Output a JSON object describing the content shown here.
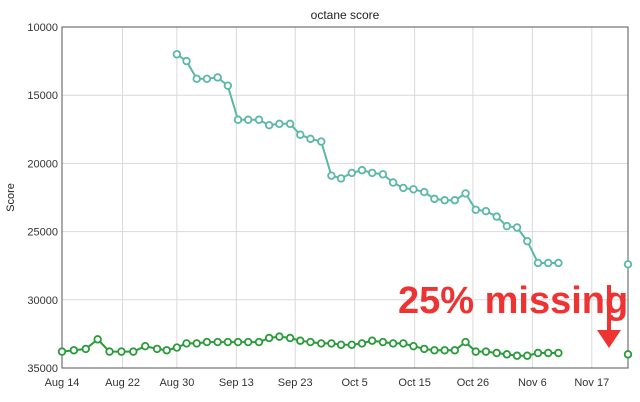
{
  "chart_data": {
    "type": "line",
    "title": "octane score",
    "xlabel": "",
    "ylabel": "Score",
    "ylim": [
      10000,
      35000
    ],
    "y_inverted": true,
    "y_ticks": [
      "10000",
      "15000",
      "20000",
      "25000",
      "30000",
      "35000"
    ],
    "y_tick_values": [
      10000,
      15000,
      20000,
      25000,
      30000,
      35000
    ],
    "x_range": [
      0,
      100
    ],
    "x_tick_labels": [
      "Aug 14",
      "Aug 22",
      "Aug 30",
      "Sep 13",
      "Sep 23",
      "Oct 5",
      "Oct 15",
      "Oct 26",
      "Nov 6",
      "Nov 17"
    ],
    "x_tick_positions": [
      0,
      10.7,
      20.3,
      30.8,
      41.2,
      51.7,
      62.3,
      72.6,
      83.1,
      93.6
    ],
    "grid": true,
    "series": [
      {
        "name": "teal",
        "color": "#5bb8a8",
        "points": [
          [
            20.3,
            12000
          ],
          [
            22.0,
            12500
          ],
          [
            23.8,
            13800
          ],
          [
            25.6,
            13800
          ],
          [
            27.5,
            13700
          ],
          [
            29.3,
            14300
          ],
          [
            31.1,
            16800
          ],
          [
            32.9,
            16800
          ],
          [
            34.8,
            16800
          ],
          [
            36.6,
            17200
          ],
          [
            38.4,
            17100
          ],
          [
            40.3,
            17100
          ],
          [
            42.1,
            17900
          ],
          [
            43.9,
            18200
          ],
          [
            45.8,
            18400
          ],
          [
            47.6,
            20900
          ],
          [
            49.3,
            21100
          ],
          [
            51.2,
            20700
          ],
          [
            53.0,
            20500
          ],
          [
            54.8,
            20700
          ],
          [
            56.7,
            20800
          ],
          [
            58.5,
            21400
          ],
          [
            60.3,
            21800
          ],
          [
            62.1,
            21900
          ],
          [
            64.0,
            22100
          ],
          [
            65.8,
            22600
          ],
          [
            67.6,
            22700
          ],
          [
            69.4,
            22700
          ],
          [
            71.3,
            22200
          ],
          [
            73.1,
            23400
          ],
          [
            74.9,
            23500
          ],
          [
            76.8,
            23900
          ],
          [
            78.6,
            24600
          ],
          [
            80.4,
            24700
          ],
          [
            82.2,
            25700
          ],
          [
            84.1,
            27300
          ],
          [
            85.9,
            27300
          ],
          [
            87.7,
            27300
          ]
        ],
        "extra_points": [
          [
            100,
            27400
          ]
        ]
      },
      {
        "name": "green",
        "color": "#2a9a3a",
        "points": [
          [
            0,
            33800
          ],
          [
            2.1,
            33700
          ],
          [
            4.2,
            33600
          ],
          [
            6.3,
            32900
          ],
          [
            8.4,
            33800
          ],
          [
            10.5,
            33800
          ],
          [
            12.6,
            33800
          ],
          [
            14.7,
            33400
          ],
          [
            16.8,
            33600
          ],
          [
            18.5,
            33700
          ],
          [
            20.3,
            33500
          ],
          [
            22.0,
            33200
          ],
          [
            23.8,
            33200
          ],
          [
            25.6,
            33100
          ],
          [
            27.5,
            33100
          ],
          [
            29.3,
            33100
          ],
          [
            31.1,
            33100
          ],
          [
            32.9,
            33100
          ],
          [
            34.8,
            33100
          ],
          [
            36.6,
            32800
          ],
          [
            38.4,
            32700
          ],
          [
            40.3,
            32800
          ],
          [
            42.1,
            33000
          ],
          [
            43.9,
            33100
          ],
          [
            45.8,
            33200
          ],
          [
            47.6,
            33200
          ],
          [
            49.3,
            33300
          ],
          [
            51.2,
            33300
          ],
          [
            53.0,
            33200
          ],
          [
            54.8,
            33000
          ],
          [
            56.7,
            33100
          ],
          [
            58.5,
            33200
          ],
          [
            60.3,
            33200
          ],
          [
            62.1,
            33400
          ],
          [
            64.0,
            33600
          ],
          [
            65.8,
            33700
          ],
          [
            67.6,
            33700
          ],
          [
            69.4,
            33700
          ],
          [
            71.3,
            33100
          ],
          [
            73.1,
            33800
          ],
          [
            74.9,
            33800
          ],
          [
            76.8,
            33900
          ],
          [
            78.6,
            34000
          ],
          [
            80.4,
            34100
          ],
          [
            82.2,
            34100
          ],
          [
            84.1,
            33900
          ],
          [
            85.9,
            33900
          ],
          [
            87.7,
            33900
          ]
        ],
        "extra_points": [
          [
            100,
            34000
          ]
        ]
      }
    ],
    "annotations": [
      {
        "text": "25% missing",
        "color": "#ee3333"
      }
    ]
  }
}
